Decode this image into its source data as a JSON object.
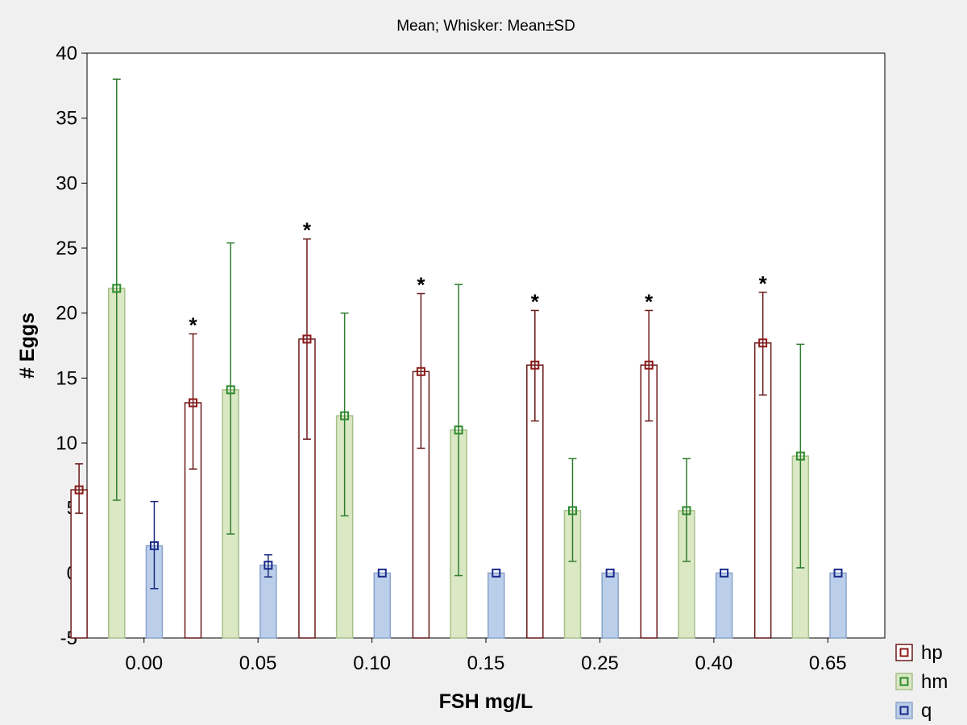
{
  "chart_data": {
    "type": "bar",
    "title": "Mean; Whisker: Mean±SD",
    "xlabel": "FSH mg/L",
    "ylabel": "# Eggs",
    "ylim": [
      -5,
      40
    ],
    "yticks": [
      -5,
      0,
      5,
      10,
      15,
      20,
      25,
      30,
      35,
      40
    ],
    "categories": [
      "0.00",
      "0.05",
      "0.10",
      "0.15",
      "0.25",
      "0.40",
      "0.65"
    ],
    "grid": false,
    "legend_position": "bottom-right",
    "series": [
      {
        "name": "hp",
        "fill": "#ffffff",
        "stroke": "#6b1a1a",
        "marker": "#8b1a1a",
        "whisker": "#6b1a1a",
        "values": [
          6.4,
          13.1,
          18.0,
          15.5,
          16.0,
          16.0,
          17.7
        ],
        "sd_low": [
          4.6,
          8.0,
          10.3,
          9.6,
          11.7,
          11.7,
          13.7
        ],
        "sd_high": [
          8.4,
          18.4,
          25.7,
          21.5,
          20.2,
          20.2,
          21.6
        ]
      },
      {
        "name": "hm",
        "fill": "#dbe8c4",
        "stroke": "#a7c08a",
        "marker": "#2e8b2e",
        "whisker": "#2e7d2e",
        "values": [
          21.9,
          14.1,
          12.1,
          11.0,
          4.8,
          4.8,
          9.0
        ],
        "sd_low": [
          5.6,
          3.0,
          4.4,
          -0.2,
          0.9,
          0.9,
          0.4
        ],
        "sd_high": [
          38.0,
          25.4,
          20.0,
          22.2,
          8.8,
          8.8,
          17.6
        ]
      },
      {
        "name": "q",
        "fill": "#bccfea",
        "stroke": "#8aa4cc",
        "marker": "#1a2a8b",
        "whisker": "#1a2a7a",
        "values": [
          2.1,
          0.6,
          0.0,
          0.0,
          0.0,
          0.0,
          0.0
        ],
        "sd_low": [
          -1.2,
          -0.3,
          0.0,
          0.0,
          0.0,
          0.0,
          0.0
        ],
        "sd_high": [
          5.5,
          1.4,
          0.0,
          0.0,
          0.0,
          0.0,
          0.0
        ]
      }
    ],
    "annotations": [
      {
        "category": "0.05",
        "series": "hp",
        "text": "*"
      },
      {
        "category": "0.10",
        "series": "hp",
        "text": "*"
      },
      {
        "category": "0.15",
        "series": "hp",
        "text": "*"
      },
      {
        "category": "0.25",
        "series": "hp",
        "text": "*"
      },
      {
        "category": "0.40",
        "series": "hp",
        "text": "*"
      },
      {
        "category": "0.65",
        "series": "hp",
        "text": "*"
      }
    ]
  }
}
